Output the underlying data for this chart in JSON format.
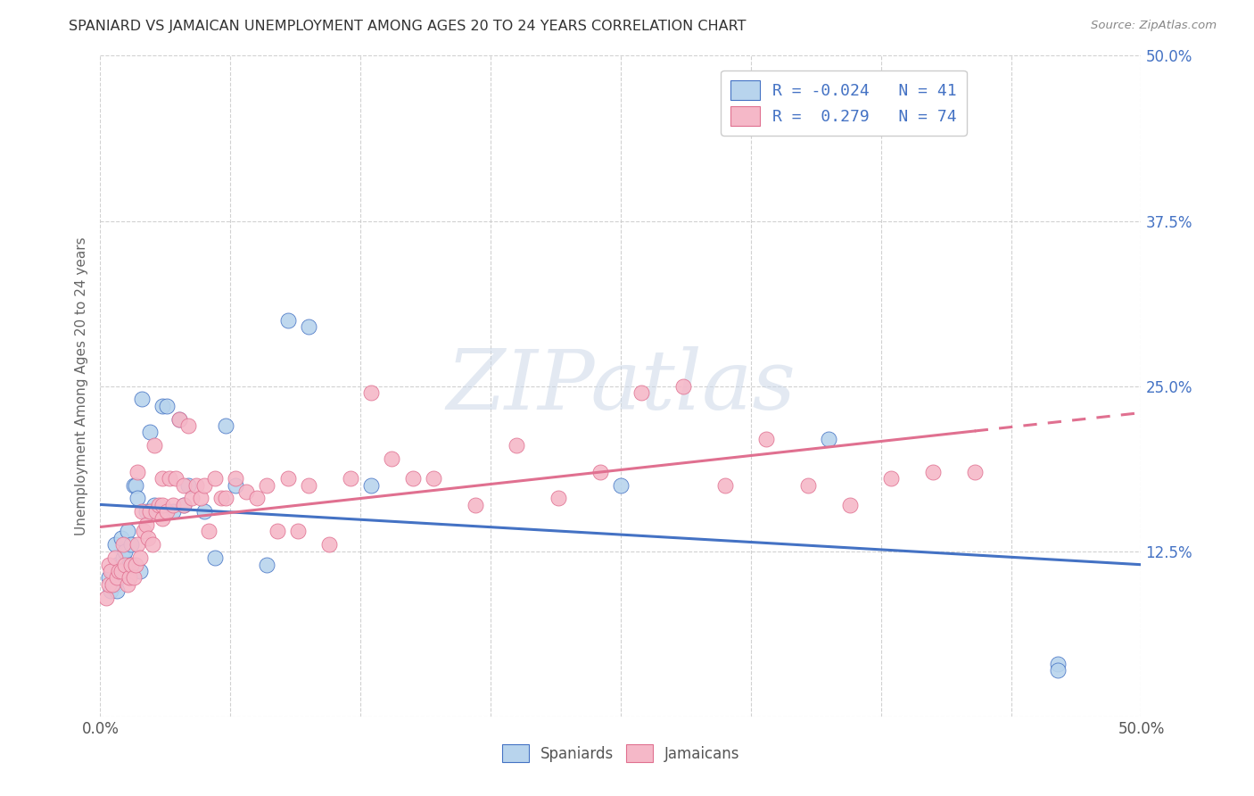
{
  "title": "SPANIARD VS JAMAICAN UNEMPLOYMENT AMONG AGES 20 TO 24 YEARS CORRELATION CHART",
  "source": "Source: ZipAtlas.com",
  "ylabel": "Unemployment Among Ages 20 to 24 years",
  "xlim": [
    0.0,
    0.5
  ],
  "ylim": [
    0.0,
    0.5
  ],
  "xtick_vals": [
    0.0,
    0.0625,
    0.125,
    0.1875,
    0.25,
    0.3125,
    0.375,
    0.4375,
    0.5
  ],
  "ytick_vals": [
    0.0,
    0.125,
    0.25,
    0.375,
    0.5
  ],
  "legend_r_spaniards": "-0.024",
  "legend_n_spaniards": "41",
  "legend_r_jamaicans": " 0.279",
  "legend_n_jamaicans": "74",
  "spaniard_color": "#b8d4ed",
  "jamaican_color": "#f5b8c8",
  "line_spaniard_color": "#4472c4",
  "line_jamaican_color": "#e07090",
  "background_color": "#ffffff",
  "watermark_text": "ZIPatlas",
  "spaniards_x": [
    0.004,
    0.005,
    0.006,
    0.007,
    0.007,
    0.008,
    0.008,
    0.009,
    0.01,
    0.01,
    0.011,
    0.012,
    0.013,
    0.014,
    0.015,
    0.016,
    0.017,
    0.018,
    0.019,
    0.02,
    0.022,
    0.024,
    0.026,
    0.03,
    0.032,
    0.035,
    0.038,
    0.04,
    0.042,
    0.05,
    0.055,
    0.06,
    0.065,
    0.08,
    0.09,
    0.1,
    0.13,
    0.25,
    0.35,
    0.46,
    0.46
  ],
  "spaniards_y": [
    0.105,
    0.095,
    0.11,
    0.1,
    0.13,
    0.115,
    0.095,
    0.105,
    0.115,
    0.135,
    0.12,
    0.125,
    0.14,
    0.115,
    0.13,
    0.175,
    0.175,
    0.165,
    0.11,
    0.24,
    0.155,
    0.215,
    0.16,
    0.235,
    0.235,
    0.155,
    0.225,
    0.16,
    0.175,
    0.155,
    0.12,
    0.22,
    0.175,
    0.115,
    0.3,
    0.295,
    0.175,
    0.175,
    0.21,
    0.04,
    0.035
  ],
  "jamaicans_x": [
    0.003,
    0.004,
    0.004,
    0.005,
    0.006,
    0.007,
    0.008,
    0.009,
    0.01,
    0.011,
    0.012,
    0.013,
    0.014,
    0.015,
    0.016,
    0.017,
    0.018,
    0.018,
    0.019,
    0.02,
    0.021,
    0.022,
    0.023,
    0.024,
    0.025,
    0.026,
    0.027,
    0.028,
    0.03,
    0.03,
    0.03,
    0.032,
    0.033,
    0.035,
    0.036,
    0.038,
    0.04,
    0.04,
    0.042,
    0.044,
    0.046,
    0.048,
    0.05,
    0.052,
    0.055,
    0.058,
    0.06,
    0.065,
    0.07,
    0.075,
    0.08,
    0.085,
    0.09,
    0.095,
    0.1,
    0.11,
    0.12,
    0.13,
    0.14,
    0.15,
    0.16,
    0.18,
    0.2,
    0.22,
    0.24,
    0.26,
    0.28,
    0.3,
    0.32,
    0.34,
    0.36,
    0.38,
    0.4,
    0.42
  ],
  "jamaicans_y": [
    0.09,
    0.1,
    0.115,
    0.11,
    0.1,
    0.12,
    0.105,
    0.11,
    0.11,
    0.13,
    0.115,
    0.1,
    0.105,
    0.115,
    0.105,
    0.115,
    0.13,
    0.185,
    0.12,
    0.155,
    0.14,
    0.145,
    0.135,
    0.155,
    0.13,
    0.205,
    0.155,
    0.16,
    0.15,
    0.16,
    0.18,
    0.155,
    0.18,
    0.16,
    0.18,
    0.225,
    0.16,
    0.175,
    0.22,
    0.165,
    0.175,
    0.165,
    0.175,
    0.14,
    0.18,
    0.165,
    0.165,
    0.18,
    0.17,
    0.165,
    0.175,
    0.14,
    0.18,
    0.14,
    0.175,
    0.13,
    0.18,
    0.245,
    0.195,
    0.18,
    0.18,
    0.16,
    0.205,
    0.165,
    0.185,
    0.245,
    0.25,
    0.175,
    0.21,
    0.175,
    0.16,
    0.18,
    0.185,
    0.185
  ]
}
